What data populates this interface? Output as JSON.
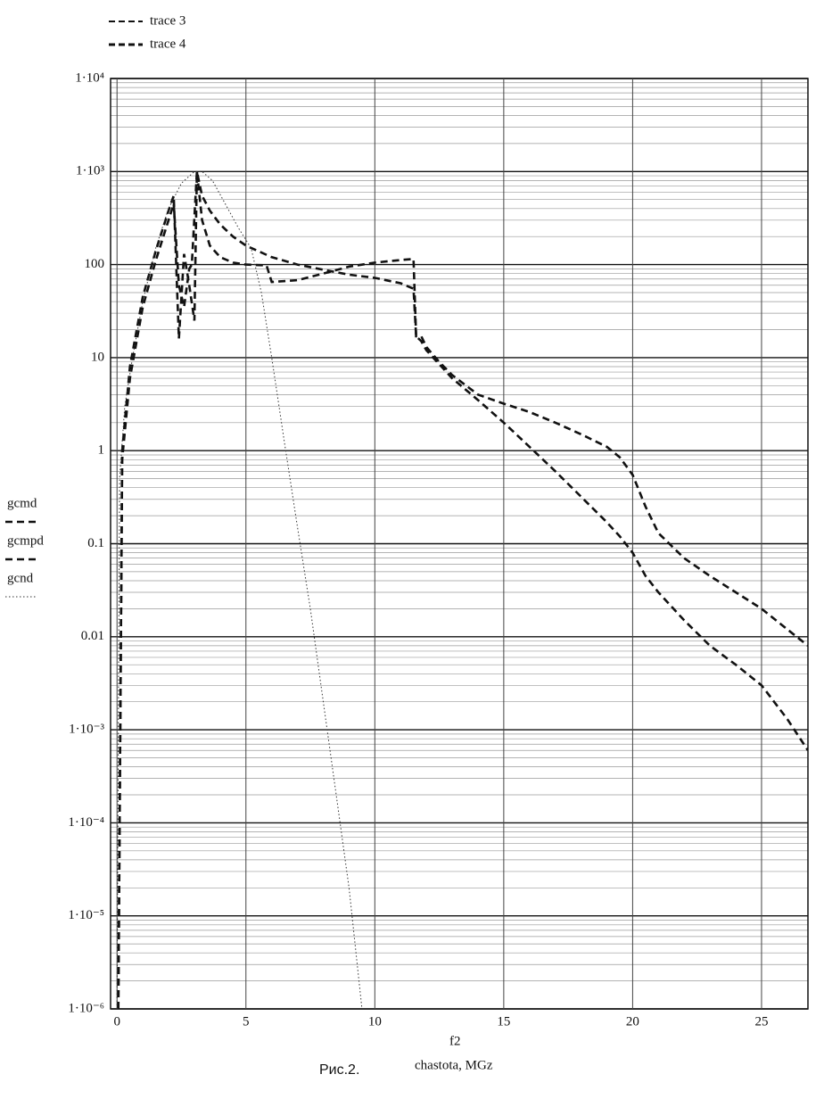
{
  "chart_data": {
    "type": "line",
    "annotations": [
      "trace 3",
      "trace 4"
    ],
    "caption": "Рис.2.",
    "x_label_var": "f2",
    "x_label": "chastota, MGz",
    "log_y": true,
    "grid": true,
    "xlim": [
      -0.25,
      26.8
    ],
    "xticks": [
      0,
      5,
      10,
      15,
      20,
      25
    ],
    "ylim": [
      1e-06,
      10000
    ],
    "yticks": [
      {
        "value": 10000,
        "label": "1·10⁴"
      },
      {
        "value": 1000,
        "label": "1·10³"
      },
      100,
      10,
      1,
      0.1,
      0.01,
      {
        "value": 0.001,
        "label": "1·10⁻³"
      },
      {
        "value": 0.0001,
        "label": "1·10⁻⁴"
      },
      {
        "value": 1e-05,
        "label": "1·10⁻⁵"
      },
      {
        "value": 1e-06,
        "label": "1·10⁻⁶"
      }
    ],
    "series": [
      {
        "name": "gcmd",
        "color": "#111111",
        "line_style": "dashed",
        "x": [
          0.05,
          0.2,
          0.5,
          1,
          1.5,
          2,
          2.2,
          2.4,
          2.6,
          2.8,
          3.0,
          3.1,
          3.3,
          3.6,
          4,
          4.5,
          5,
          5.8,
          6,
          7,
          8,
          9,
          10,
          11,
          11.5,
          11.6,
          11.8,
          12,
          12.5,
          13,
          14,
          15,
          16,
          17,
          18,
          19,
          19.5,
          20,
          20.5,
          21,
          22,
          23,
          24,
          25,
          26,
          26.8
        ],
        "values": [
          1e-06,
          1,
          8,
          45,
          140,
          380,
          550,
          16,
          130,
          60,
          25,
          1000,
          300,
          160,
          120,
          105,
          100,
          98,
          65,
          68,
          80,
          95,
          105,
          112,
          115,
          17,
          17,
          13,
          9,
          6.5,
          4,
          3.2,
          2.6,
          2,
          1.5,
          1.1,
          0.85,
          0.55,
          0.25,
          0.13,
          0.07,
          0.045,
          0.03,
          0.02,
          0.012,
          0.008
        ]
      },
      {
        "name": "gcmpd",
        "color": "#111111",
        "line_style": "dashed",
        "x": [
          0.05,
          0.2,
          0.5,
          1,
          1.5,
          2,
          2.2,
          2.4,
          2.6,
          2.8,
          2.9,
          3.1,
          3.3,
          3.6,
          4,
          4.5,
          5,
          6,
          7,
          8,
          9,
          10,
          11,
          11.5,
          11.6,
          11.8,
          12,
          12.5,
          13,
          14,
          15,
          16,
          17,
          18,
          19,
          19.5,
          20,
          20.5,
          21,
          22,
          23,
          24,
          25,
          26,
          26.8
        ],
        "values": [
          1e-06,
          0.8,
          6,
          35,
          110,
          300,
          450,
          60,
          35,
          90,
          100,
          1000,
          550,
          380,
          270,
          200,
          160,
          120,
          100,
          88,
          78,
          72,
          63,
          55,
          17,
          15,
          12,
          8.5,
          6,
          3.5,
          2,
          1.1,
          0.6,
          0.32,
          0.17,
          0.12,
          0.08,
          0.045,
          0.03,
          0.015,
          0.008,
          0.005,
          0.003,
          0.0013,
          0.0006
        ]
      },
      {
        "name": "gcnd",
        "color": "#333333",
        "line_style": "dotted",
        "x": [
          0,
          0.1,
          0.3,
          0.6,
          1,
          1.5,
          2,
          2.5,
          3,
          3.3,
          3.7,
          4.2,
          4.7,
          5.2,
          5.6,
          6,
          6.5,
          7,
          7.5,
          8,
          8.5,
          9,
          9.5
        ],
        "values": [
          1e-06,
          0.5,
          3,
          10,
          40,
          150,
          400,
          750,
          1000,
          1000,
          800,
          450,
          250,
          150,
          50,
          10,
          1.2,
          0.15,
          0.02,
          0.002,
          0.0002,
          2e-05,
          1e-06
        ]
      }
    ]
  }
}
